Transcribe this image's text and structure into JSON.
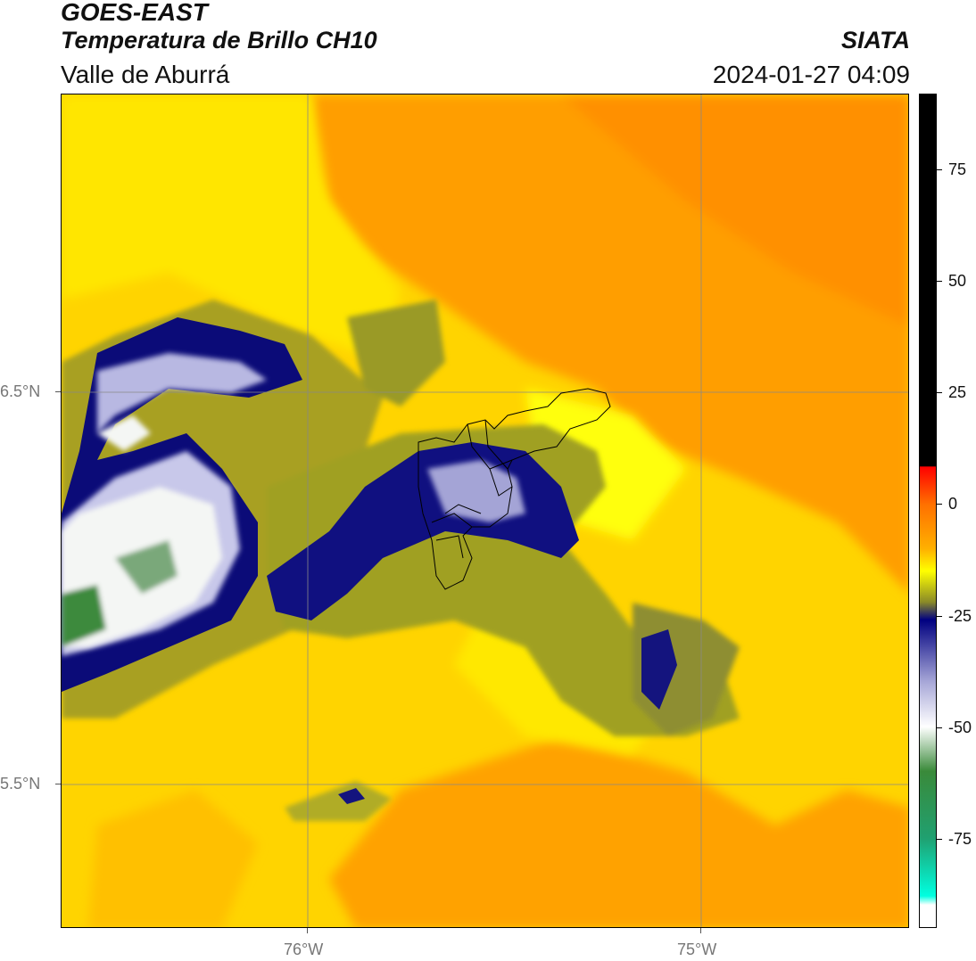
{
  "header": {
    "satellite": "GOES-EAST",
    "product": "Temperatura de Brillo CH10",
    "region": "Valle de Aburrá",
    "source": "SIATA",
    "timestamp": "2024-01-27 04:09"
  },
  "map": {
    "lon_ticks": [
      {
        "label": "76°W",
        "value": -76.0
      },
      {
        "label": "75°W",
        "value": -75.0
      }
    ],
    "lat_ticks": [
      {
        "label": "6.5°N",
        "value": 6.5
      },
      {
        "label": "5.5°N",
        "value": 5.5
      }
    ],
    "extent": {
      "lon_min": -76.63,
      "lon_max": -74.53,
      "lat_min": 5.13,
      "lat_max": 7.26
    },
    "colors": {
      "warm_orange": "#ff9a00",
      "yellow": "#ffe000",
      "olive": "#9a9a20",
      "navy": "#0b0b7a",
      "lavender": "#b8b8e0",
      "white": "#ffffff",
      "green": "#3c8a3c",
      "gridline": "#888888",
      "boundary": "#000000"
    }
  },
  "colorbar": {
    "unit_range": [
      -95,
      92
    ],
    "ticks": [
      {
        "label": "75",
        "value": 75
      },
      {
        "label": "50",
        "value": 50
      },
      {
        "label": "25",
        "value": 25
      },
      {
        "label": "0",
        "value": 0
      },
      {
        "label": "-25",
        "value": -25
      },
      {
        "label": "-50",
        "value": -50
      },
      {
        "label": "-75",
        "value": -75
      }
    ],
    "stops": [
      {
        "value": 92,
        "color": "#000000"
      },
      {
        "value": 8.5,
        "color": "#000000"
      },
      {
        "value": 8.4,
        "color": "#ff0000"
      },
      {
        "value": 0,
        "color": "#ff7000"
      },
      {
        "value": -10,
        "color": "#ffb000"
      },
      {
        "value": -15,
        "color": "#ffff00"
      },
      {
        "value": -22,
        "color": "#8a8a28"
      },
      {
        "value": -26,
        "color": "#000080"
      },
      {
        "value": -40,
        "color": "#a8a8d8"
      },
      {
        "value": -50,
        "color": "#ffffff"
      },
      {
        "value": -60,
        "color": "#3a8a3a"
      },
      {
        "value": -75,
        "color": "#20a070"
      },
      {
        "value": -88,
        "color": "#00ffe0"
      },
      {
        "value": -90,
        "color": "#ffffff"
      },
      {
        "value": -95,
        "color": "#ffffff"
      }
    ]
  }
}
